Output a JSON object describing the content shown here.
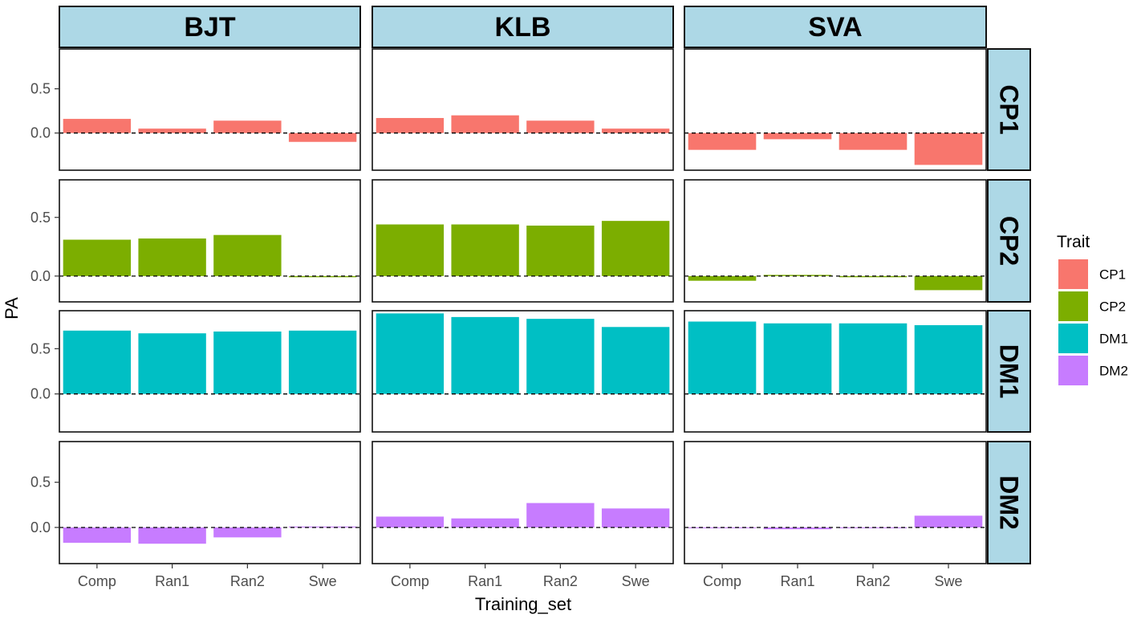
{
  "chart_data": {
    "type": "bar",
    "facet_columns": [
      "BJT",
      "KLB",
      "SVA"
    ],
    "facet_rows": [
      "CP1",
      "CP2",
      "DM1",
      "DM2"
    ],
    "categories": [
      "Comp",
      "Ran1",
      "Ran2",
      "Swe"
    ],
    "xlabel": "Training_set",
    "ylabel": "PA",
    "y_ticks": [
      0.0,
      0.5
    ],
    "y_tick_labels": [
      "0.0",
      "0.5"
    ],
    "reference_line": 0.0,
    "legend": {
      "title": "Trait",
      "position": "right",
      "entries": [
        {
          "name": "CP1",
          "color": "#F8766D"
        },
        {
          "name": "CP2",
          "color": "#7CAE00"
        },
        {
          "name": "DM1",
          "color": "#00BFC4"
        },
        {
          "name": "DM2",
          "color": "#C77CFF"
        }
      ]
    },
    "strip_fill": "#ADD8E6",
    "rows": [
      {
        "trait": "CP1",
        "ylim": [
          -0.42,
          0.95
        ],
        "values": {
          "BJT": [
            0.16,
            0.05,
            0.14,
            -0.1
          ],
          "KLB": [
            0.17,
            0.2,
            0.14,
            0.05
          ],
          "SVA": [
            -0.19,
            -0.07,
            -0.19,
            -0.36
          ]
        }
      },
      {
        "trait": "CP2",
        "ylim": [
          -0.22,
          0.82
        ],
        "values": {
          "BJT": [
            0.31,
            0.32,
            0.35,
            -0.01
          ],
          "KLB": [
            0.44,
            0.44,
            0.43,
            0.47
          ],
          "SVA": [
            -0.04,
            0.01,
            -0.01,
            -0.12
          ]
        }
      },
      {
        "trait": "DM1",
        "ylim": [
          -0.42,
          0.92
        ],
        "values": {
          "BJT": [
            0.7,
            0.67,
            0.69,
            0.7
          ],
          "KLB": [
            0.89,
            0.85,
            0.83,
            0.74
          ],
          "SVA": [
            0.8,
            0.78,
            0.78,
            0.76
          ]
        }
      },
      {
        "trait": "DM2",
        "ylim": [
          -0.4,
          0.95
        ],
        "values": {
          "BJT": [
            -0.17,
            -0.18,
            -0.11,
            0.01
          ],
          "KLB": [
            0.12,
            0.1,
            0.27,
            0.21
          ],
          "SVA": [
            0.0,
            -0.02,
            0.0,
            0.13
          ]
        }
      }
    ]
  }
}
